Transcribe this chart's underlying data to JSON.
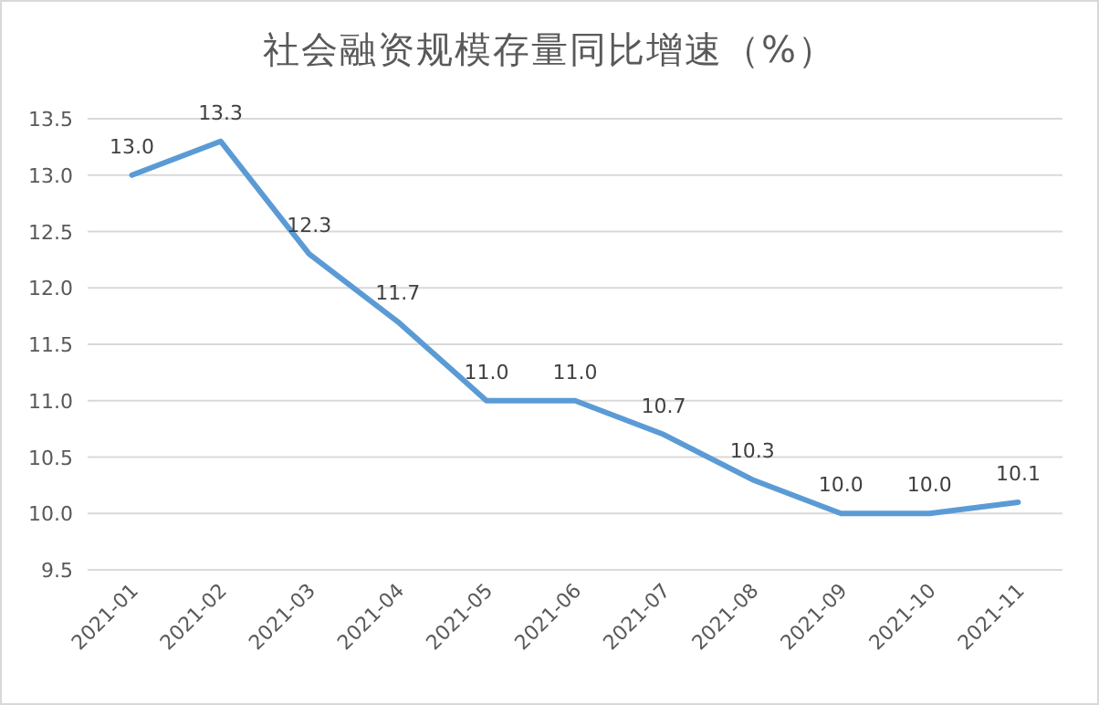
{
  "chart_data": {
    "type": "line",
    "title": "社会融资规模存量同比增速（%）",
    "categories": [
      "2021-01",
      "2021-02",
      "2021-03",
      "2021-04",
      "2021-05",
      "2021-06",
      "2021-07",
      "2021-08",
      "2021-09",
      "2021-10",
      "2021-11"
    ],
    "series": [
      {
        "color": "#5b9bd5",
        "values": [
          13.0,
          13.3,
          12.3,
          11.7,
          11.0,
          11.0,
          10.7,
          10.3,
          10.0,
          10.0,
          10.1
        ],
        "value_labels": [
          "13.0",
          "13.3",
          "12.3",
          "11.7",
          "11.0",
          "11.0",
          "10.7",
          "10.3",
          "10.0",
          "10.0",
          "10.1"
        ]
      }
    ],
    "ylim": [
      9.5,
      13.5
    ],
    "yticks": [
      {
        "value": 9.5,
        "label": "9.5"
      },
      {
        "value": 10,
        "label": "10.0"
      },
      {
        "value": 10.5,
        "label": "10.5"
      },
      {
        "value": 11,
        "label": "11.0"
      },
      {
        "value": 11.5,
        "label": "11.5"
      },
      {
        "value": 12,
        "label": "12.0"
      },
      {
        "value": 12.5,
        "label": "12.5"
      },
      {
        "value": 13,
        "label": "13.0"
      },
      {
        "value": 13.5,
        "label": "13.5"
      }
    ],
    "grid": "y",
    "marker": "none",
    "line_style": "solid"
  }
}
